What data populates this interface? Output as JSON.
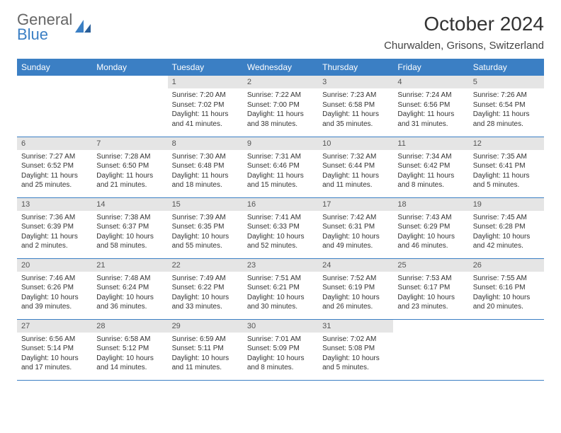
{
  "brand": {
    "line1": "General",
    "line2": "Blue"
  },
  "title": "October 2024",
  "location": "Churwalden, Grisons, Switzerland",
  "colors": {
    "header_bg": "#3b7fc4",
    "header_fg": "#ffffff",
    "daynum_bg": "#e5e5e5",
    "border": "#3b7fc4"
  },
  "day_names": [
    "Sunday",
    "Monday",
    "Tuesday",
    "Wednesday",
    "Thursday",
    "Friday",
    "Saturday"
  ],
  "weeks": [
    [
      null,
      null,
      {
        "n": "1",
        "sr": "Sunrise: 7:20 AM",
        "ss": "Sunset: 7:02 PM",
        "dl": "Daylight: 11 hours and 41 minutes."
      },
      {
        "n": "2",
        "sr": "Sunrise: 7:22 AM",
        "ss": "Sunset: 7:00 PM",
        "dl": "Daylight: 11 hours and 38 minutes."
      },
      {
        "n": "3",
        "sr": "Sunrise: 7:23 AM",
        "ss": "Sunset: 6:58 PM",
        "dl": "Daylight: 11 hours and 35 minutes."
      },
      {
        "n": "4",
        "sr": "Sunrise: 7:24 AM",
        "ss": "Sunset: 6:56 PM",
        "dl": "Daylight: 11 hours and 31 minutes."
      },
      {
        "n": "5",
        "sr": "Sunrise: 7:26 AM",
        "ss": "Sunset: 6:54 PM",
        "dl": "Daylight: 11 hours and 28 minutes."
      }
    ],
    [
      {
        "n": "6",
        "sr": "Sunrise: 7:27 AM",
        "ss": "Sunset: 6:52 PM",
        "dl": "Daylight: 11 hours and 25 minutes."
      },
      {
        "n": "7",
        "sr": "Sunrise: 7:28 AM",
        "ss": "Sunset: 6:50 PM",
        "dl": "Daylight: 11 hours and 21 minutes."
      },
      {
        "n": "8",
        "sr": "Sunrise: 7:30 AM",
        "ss": "Sunset: 6:48 PM",
        "dl": "Daylight: 11 hours and 18 minutes."
      },
      {
        "n": "9",
        "sr": "Sunrise: 7:31 AM",
        "ss": "Sunset: 6:46 PM",
        "dl": "Daylight: 11 hours and 15 minutes."
      },
      {
        "n": "10",
        "sr": "Sunrise: 7:32 AM",
        "ss": "Sunset: 6:44 PM",
        "dl": "Daylight: 11 hours and 11 minutes."
      },
      {
        "n": "11",
        "sr": "Sunrise: 7:34 AM",
        "ss": "Sunset: 6:42 PM",
        "dl": "Daylight: 11 hours and 8 minutes."
      },
      {
        "n": "12",
        "sr": "Sunrise: 7:35 AM",
        "ss": "Sunset: 6:41 PM",
        "dl": "Daylight: 11 hours and 5 minutes."
      }
    ],
    [
      {
        "n": "13",
        "sr": "Sunrise: 7:36 AM",
        "ss": "Sunset: 6:39 PM",
        "dl": "Daylight: 11 hours and 2 minutes."
      },
      {
        "n": "14",
        "sr": "Sunrise: 7:38 AM",
        "ss": "Sunset: 6:37 PM",
        "dl": "Daylight: 10 hours and 58 minutes."
      },
      {
        "n": "15",
        "sr": "Sunrise: 7:39 AM",
        "ss": "Sunset: 6:35 PM",
        "dl": "Daylight: 10 hours and 55 minutes."
      },
      {
        "n": "16",
        "sr": "Sunrise: 7:41 AM",
        "ss": "Sunset: 6:33 PM",
        "dl": "Daylight: 10 hours and 52 minutes."
      },
      {
        "n": "17",
        "sr": "Sunrise: 7:42 AM",
        "ss": "Sunset: 6:31 PM",
        "dl": "Daylight: 10 hours and 49 minutes."
      },
      {
        "n": "18",
        "sr": "Sunrise: 7:43 AM",
        "ss": "Sunset: 6:29 PM",
        "dl": "Daylight: 10 hours and 46 minutes."
      },
      {
        "n": "19",
        "sr": "Sunrise: 7:45 AM",
        "ss": "Sunset: 6:28 PM",
        "dl": "Daylight: 10 hours and 42 minutes."
      }
    ],
    [
      {
        "n": "20",
        "sr": "Sunrise: 7:46 AM",
        "ss": "Sunset: 6:26 PM",
        "dl": "Daylight: 10 hours and 39 minutes."
      },
      {
        "n": "21",
        "sr": "Sunrise: 7:48 AM",
        "ss": "Sunset: 6:24 PM",
        "dl": "Daylight: 10 hours and 36 minutes."
      },
      {
        "n": "22",
        "sr": "Sunrise: 7:49 AM",
        "ss": "Sunset: 6:22 PM",
        "dl": "Daylight: 10 hours and 33 minutes."
      },
      {
        "n": "23",
        "sr": "Sunrise: 7:51 AM",
        "ss": "Sunset: 6:21 PM",
        "dl": "Daylight: 10 hours and 30 minutes."
      },
      {
        "n": "24",
        "sr": "Sunrise: 7:52 AM",
        "ss": "Sunset: 6:19 PM",
        "dl": "Daylight: 10 hours and 26 minutes."
      },
      {
        "n": "25",
        "sr": "Sunrise: 7:53 AM",
        "ss": "Sunset: 6:17 PM",
        "dl": "Daylight: 10 hours and 23 minutes."
      },
      {
        "n": "26",
        "sr": "Sunrise: 7:55 AM",
        "ss": "Sunset: 6:16 PM",
        "dl": "Daylight: 10 hours and 20 minutes."
      }
    ],
    [
      {
        "n": "27",
        "sr": "Sunrise: 6:56 AM",
        "ss": "Sunset: 5:14 PM",
        "dl": "Daylight: 10 hours and 17 minutes."
      },
      {
        "n": "28",
        "sr": "Sunrise: 6:58 AM",
        "ss": "Sunset: 5:12 PM",
        "dl": "Daylight: 10 hours and 14 minutes."
      },
      {
        "n": "29",
        "sr": "Sunrise: 6:59 AM",
        "ss": "Sunset: 5:11 PM",
        "dl": "Daylight: 10 hours and 11 minutes."
      },
      {
        "n": "30",
        "sr": "Sunrise: 7:01 AM",
        "ss": "Sunset: 5:09 PM",
        "dl": "Daylight: 10 hours and 8 minutes."
      },
      {
        "n": "31",
        "sr": "Sunrise: 7:02 AM",
        "ss": "Sunset: 5:08 PM",
        "dl": "Daylight: 10 hours and 5 minutes."
      },
      null,
      null
    ]
  ]
}
